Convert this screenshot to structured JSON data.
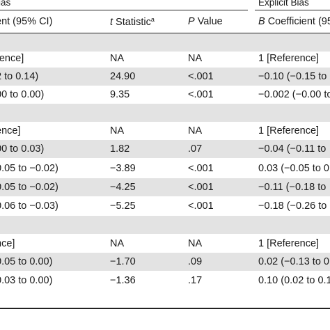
{
  "header": {
    "group_left": "ias",
    "group_right": "Explicit Bias",
    "col1": "ent (95% CI)",
    "col2_italic": "t",
    "col2_rest": " Statistic",
    "col2_sup": "a",
    "col3_italic": "P",
    "col3_rest": " Value",
    "col4_italic": "B",
    "col4_rest": " Coefficient (95"
  },
  "rows": [
    {
      "c1": "",
      "c2": "",
      "c3": "",
      "c4": ""
    },
    {
      "c1": "rence]",
      "c2": "NA",
      "c3": "NA",
      "c4": "1 [Reference]"
    },
    {
      "c1": "2 to 0.14)",
      "c2": "24.90",
      "c3": "<.001",
      "c4": "−0.10 (−0.15 to"
    },
    {
      "c1": "00 to 0.00)",
      "c2": "9.35",
      "c3": "<.001",
      "c4": "−0.002 (−0.00 to"
    },
    {
      "c1": "",
      "c2": "",
      "c3": "",
      "c4": ""
    },
    {
      "c1": "ence]",
      "c2": "NA",
      "c3": "NA",
      "c4": "1 [Reference]"
    },
    {
      "c1": "00 to 0.03)",
      "c2": "1.82",
      "c3": ".07",
      "c4": "−0.04 (−0.11 to"
    },
    {
      "c1": "0.05 to −0.02)",
      "c2": "−3.89",
      "c3": "<.001",
      "c4": "0.03 (−0.05 to 0"
    },
    {
      "c1": "0.05 to −0.02)",
      "c2": "−4.25",
      "c3": "<.001",
      "c4": "−0.11 (−0.18 to"
    },
    {
      "c1": "0.06 to −0.03)",
      "c2": "−5.25",
      "c3": "<.001",
      "c4": "−0.18 (−0.26 to"
    },
    {
      "c1": "",
      "c2": "",
      "c3": "",
      "c4": ""
    },
    {
      "c1": "nce]",
      "c2": "NA",
      "c3": "NA",
      "c4": "1 [Reference]"
    },
    {
      "c1": "0.05 to 0.00)",
      "c2": "−1.70",
      "c3": ".09",
      "c4": "0.02 (−0.13 to 0"
    },
    {
      "c1": "0.03 to 0.00)",
      "c2": "−1.36",
      "c3": ".17",
      "c4": "0.10 (0.02 to 0.1"
    }
  ]
}
